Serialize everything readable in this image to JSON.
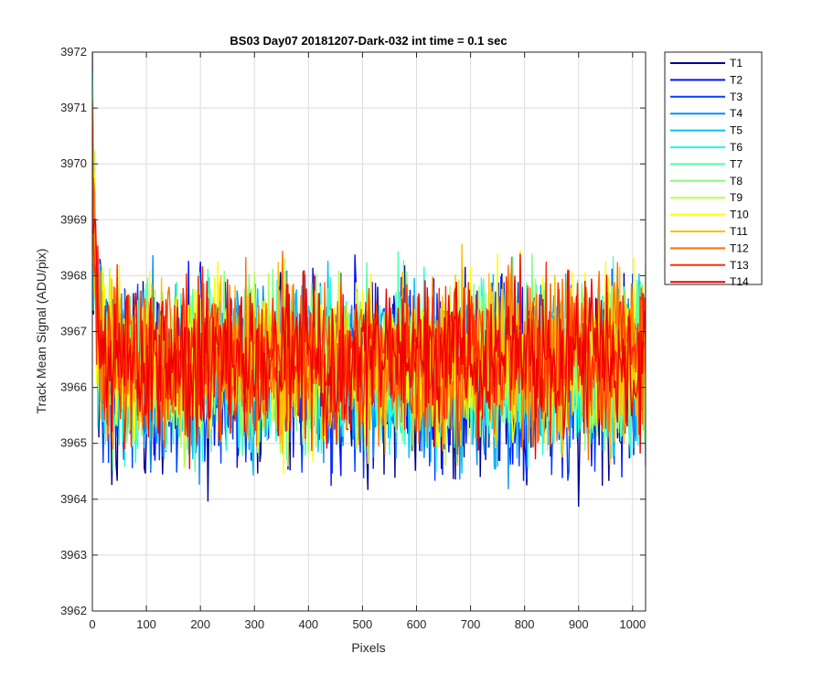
{
  "chart_data": {
    "type": "line",
    "title": "BS03 Day07 20181207-Dark-032 int time = 0.1 sec",
    "xlabel": "Pixels",
    "ylabel": "Track Mean Signal (ADU/pix)",
    "xlim": [
      0,
      1024
    ],
    "ylim": [
      3962,
      3972
    ],
    "xticks": [
      0,
      100,
      200,
      300,
      400,
      500,
      600,
      700,
      800,
      900,
      1000
    ],
    "yticks": [
      3962,
      3963,
      3964,
      3965,
      3966,
      3967,
      3968,
      3969,
      3970,
      3971,
      3972
    ],
    "grid": true,
    "legend_position": "outside-top-right",
    "noise_model": {
      "x_start": 0,
      "x_end": 1024,
      "x_step": 2,
      "baseline": 3966.5,
      "start_transient": 5.0,
      "transient_decay_pixels": 6
    },
    "series": [
      {
        "name": "T1",
        "color": "#000090",
        "mean": 3966.1,
        "spread": 1.0
      },
      {
        "name": "T2",
        "color": "#0010ff",
        "mean": 3966.2,
        "spread": 0.95
      },
      {
        "name": "T3",
        "color": "#0040ff",
        "mean": 3966.2,
        "spread": 0.95
      },
      {
        "name": "T4",
        "color": "#0090ff",
        "mean": 3966.3,
        "spread": 0.92
      },
      {
        "name": "T5",
        "color": "#00c0ff",
        "mean": 3966.3,
        "spread": 0.9
      },
      {
        "name": "T6",
        "color": "#20ffdf",
        "mean": 3966.3,
        "spread": 0.88
      },
      {
        "name": "T7",
        "color": "#50ffaf",
        "mean": 3966.4,
        "spread": 0.86
      },
      {
        "name": "T8",
        "color": "#80ff80",
        "mean": 3966.4,
        "spread": 0.85
      },
      {
        "name": "T9",
        "color": "#afff50",
        "mean": 3966.4,
        "spread": 0.85
      },
      {
        "name": "T10",
        "color": "#ffff00",
        "mean": 3966.5,
        "spread": 0.88
      },
      {
        "name": "T11",
        "color": "#ffbf00",
        "mean": 3966.5,
        "spread": 0.88
      },
      {
        "name": "T12",
        "color": "#ff7000",
        "mean": 3966.5,
        "spread": 0.85
      },
      {
        "name": "T13",
        "color": "#ff3000",
        "mean": 3966.5,
        "spread": 0.85
      },
      {
        "name": "T14",
        "color": "#f00000",
        "mean": 3966.5,
        "spread": 0.82
      }
    ]
  }
}
